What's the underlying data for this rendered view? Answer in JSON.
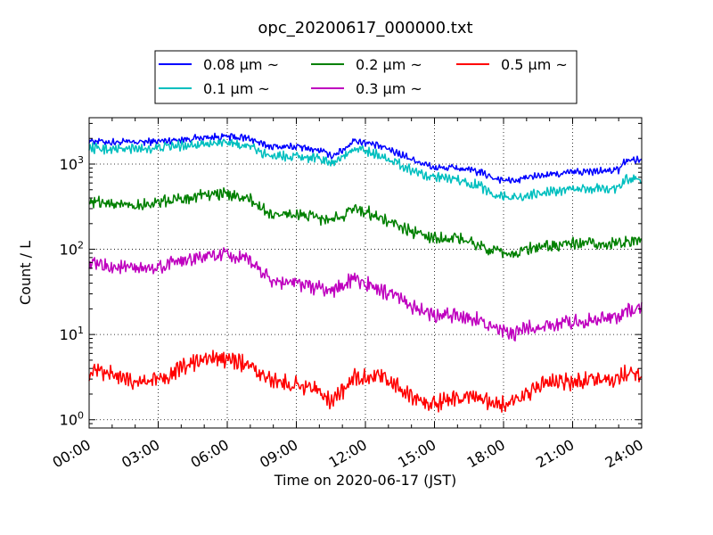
{
  "chart_data": {
    "type": "line",
    "title": "opc_20200617_000000.txt",
    "xlabel": "Time on 2020-06-17 (JST)",
    "ylabel": "Count / L",
    "x_range_hours": [
      0,
      24
    ],
    "x_ticks": [
      "00:00",
      "03:00",
      "06:00",
      "09:00",
      "12:00",
      "15:00",
      "18:00",
      "21:00",
      "24:00"
    ],
    "y_scale": "log",
    "ylim": [
      0.8,
      3500
    ],
    "y_ticks": [
      {
        "value": 1,
        "base": "10",
        "exp": "0"
      },
      {
        "value": 10,
        "base": "10",
        "exp": "1"
      },
      {
        "value": 100,
        "base": "10",
        "exp": "2"
      },
      {
        "value": 1000,
        "base": "10",
        "exp": "3"
      }
    ],
    "grid": true,
    "legend_placement": "top-center, above plot",
    "series": [
      {
        "name": "0.08 μm ~",
        "color": "#0000ff",
        "hours": [
          0,
          1,
          2,
          3,
          4,
          5,
          6,
          7,
          7.5,
          8,
          9,
          10,
          10.5,
          11,
          11.5,
          12,
          13,
          14,
          15,
          16,
          17,
          17.5,
          18,
          18.5,
          19,
          20,
          21,
          22,
          23,
          23.3,
          24
        ],
        "values": [
          1900,
          1800,
          1800,
          1850,
          1950,
          2050,
          2100,
          2000,
          1700,
          1600,
          1600,
          1450,
          1250,
          1450,
          1900,
          1800,
          1500,
          1150,
          900,
          900,
          800,
          700,
          650,
          630,
          700,
          750,
          800,
          820,
          850,
          1100,
          1150
        ]
      },
      {
        "name": "0.1 μm ~",
        "color": "#00bfbf",
        "hours": [
          0,
          1,
          2,
          3,
          4,
          5,
          6,
          7,
          7.5,
          8,
          9,
          10,
          10.5,
          11,
          11.5,
          12,
          13,
          14,
          15,
          16,
          17,
          17.5,
          18,
          18.5,
          19,
          20,
          21,
          22,
          23,
          23.3,
          24
        ],
        "values": [
          1550,
          1500,
          1500,
          1550,
          1650,
          1750,
          1750,
          1600,
          1350,
          1250,
          1250,
          1150,
          1050,
          1200,
          1500,
          1450,
          1150,
          850,
          700,
          650,
          550,
          450,
          420,
          400,
          430,
          470,
          500,
          520,
          520,
          650,
          680
        ]
      },
      {
        "name": "0.2 μm ~",
        "color": "#008000",
        "hours": [
          0,
          1,
          2,
          3,
          4,
          5,
          6,
          7,
          7.5,
          8,
          9,
          10,
          10.5,
          11,
          11.5,
          12,
          13,
          14,
          15,
          16,
          17,
          17.5,
          18,
          18.5,
          19,
          20,
          21,
          22,
          23,
          23.3,
          24
        ],
        "values": [
          370,
          340,
          330,
          350,
          390,
          440,
          440,
          380,
          300,
          250,
          260,
          230,
          215,
          250,
          300,
          280,
          210,
          160,
          135,
          135,
          110,
          95,
          90,
          88,
          100,
          110,
          115,
          115,
          115,
          125,
          130
        ]
      },
      {
        "name": "0.3 μm ~",
        "color": "#bf00bf",
        "hours": [
          0,
          1,
          2,
          3,
          4,
          5,
          6,
          7,
          7.5,
          8,
          9,
          10,
          10.5,
          11,
          11.5,
          12,
          13,
          14,
          15,
          16,
          17,
          17.5,
          18,
          18.5,
          19,
          20,
          21,
          22,
          23,
          23.3,
          24
        ],
        "values": [
          68,
          62,
          58,
          62,
          72,
          82,
          85,
          72,
          55,
          42,
          40,
          35,
          32,
          38,
          45,
          40,
          30,
          22,
          16,
          17,
          15,
          12,
          10.5,
          10,
          12,
          13,
          14,
          15,
          16,
          19,
          20
        ]
      },
      {
        "name": "0.5 μm ~",
        "color": "#ff0000",
        "hours": [
          0,
          1,
          2,
          3,
          4,
          5,
          6,
          7,
          7.5,
          8,
          9,
          10,
          10.5,
          11,
          11.5,
          12,
          13,
          14,
          15,
          16,
          17,
          17.5,
          18,
          18.5,
          19,
          20,
          21,
          22,
          23,
          23.3,
          24
        ],
        "values": [
          3.6,
          3.4,
          2.8,
          3.0,
          4.0,
          5.0,
          5.2,
          4.3,
          3.2,
          2.8,
          2.6,
          2.2,
          1.7,
          2.2,
          3.2,
          3.2,
          3.0,
          1.8,
          1.5,
          1.8,
          1.7,
          1.5,
          1.5,
          1.6,
          2.0,
          2.8,
          2.8,
          2.9,
          3.1,
          3.4,
          3.4
        ]
      }
    ]
  }
}
